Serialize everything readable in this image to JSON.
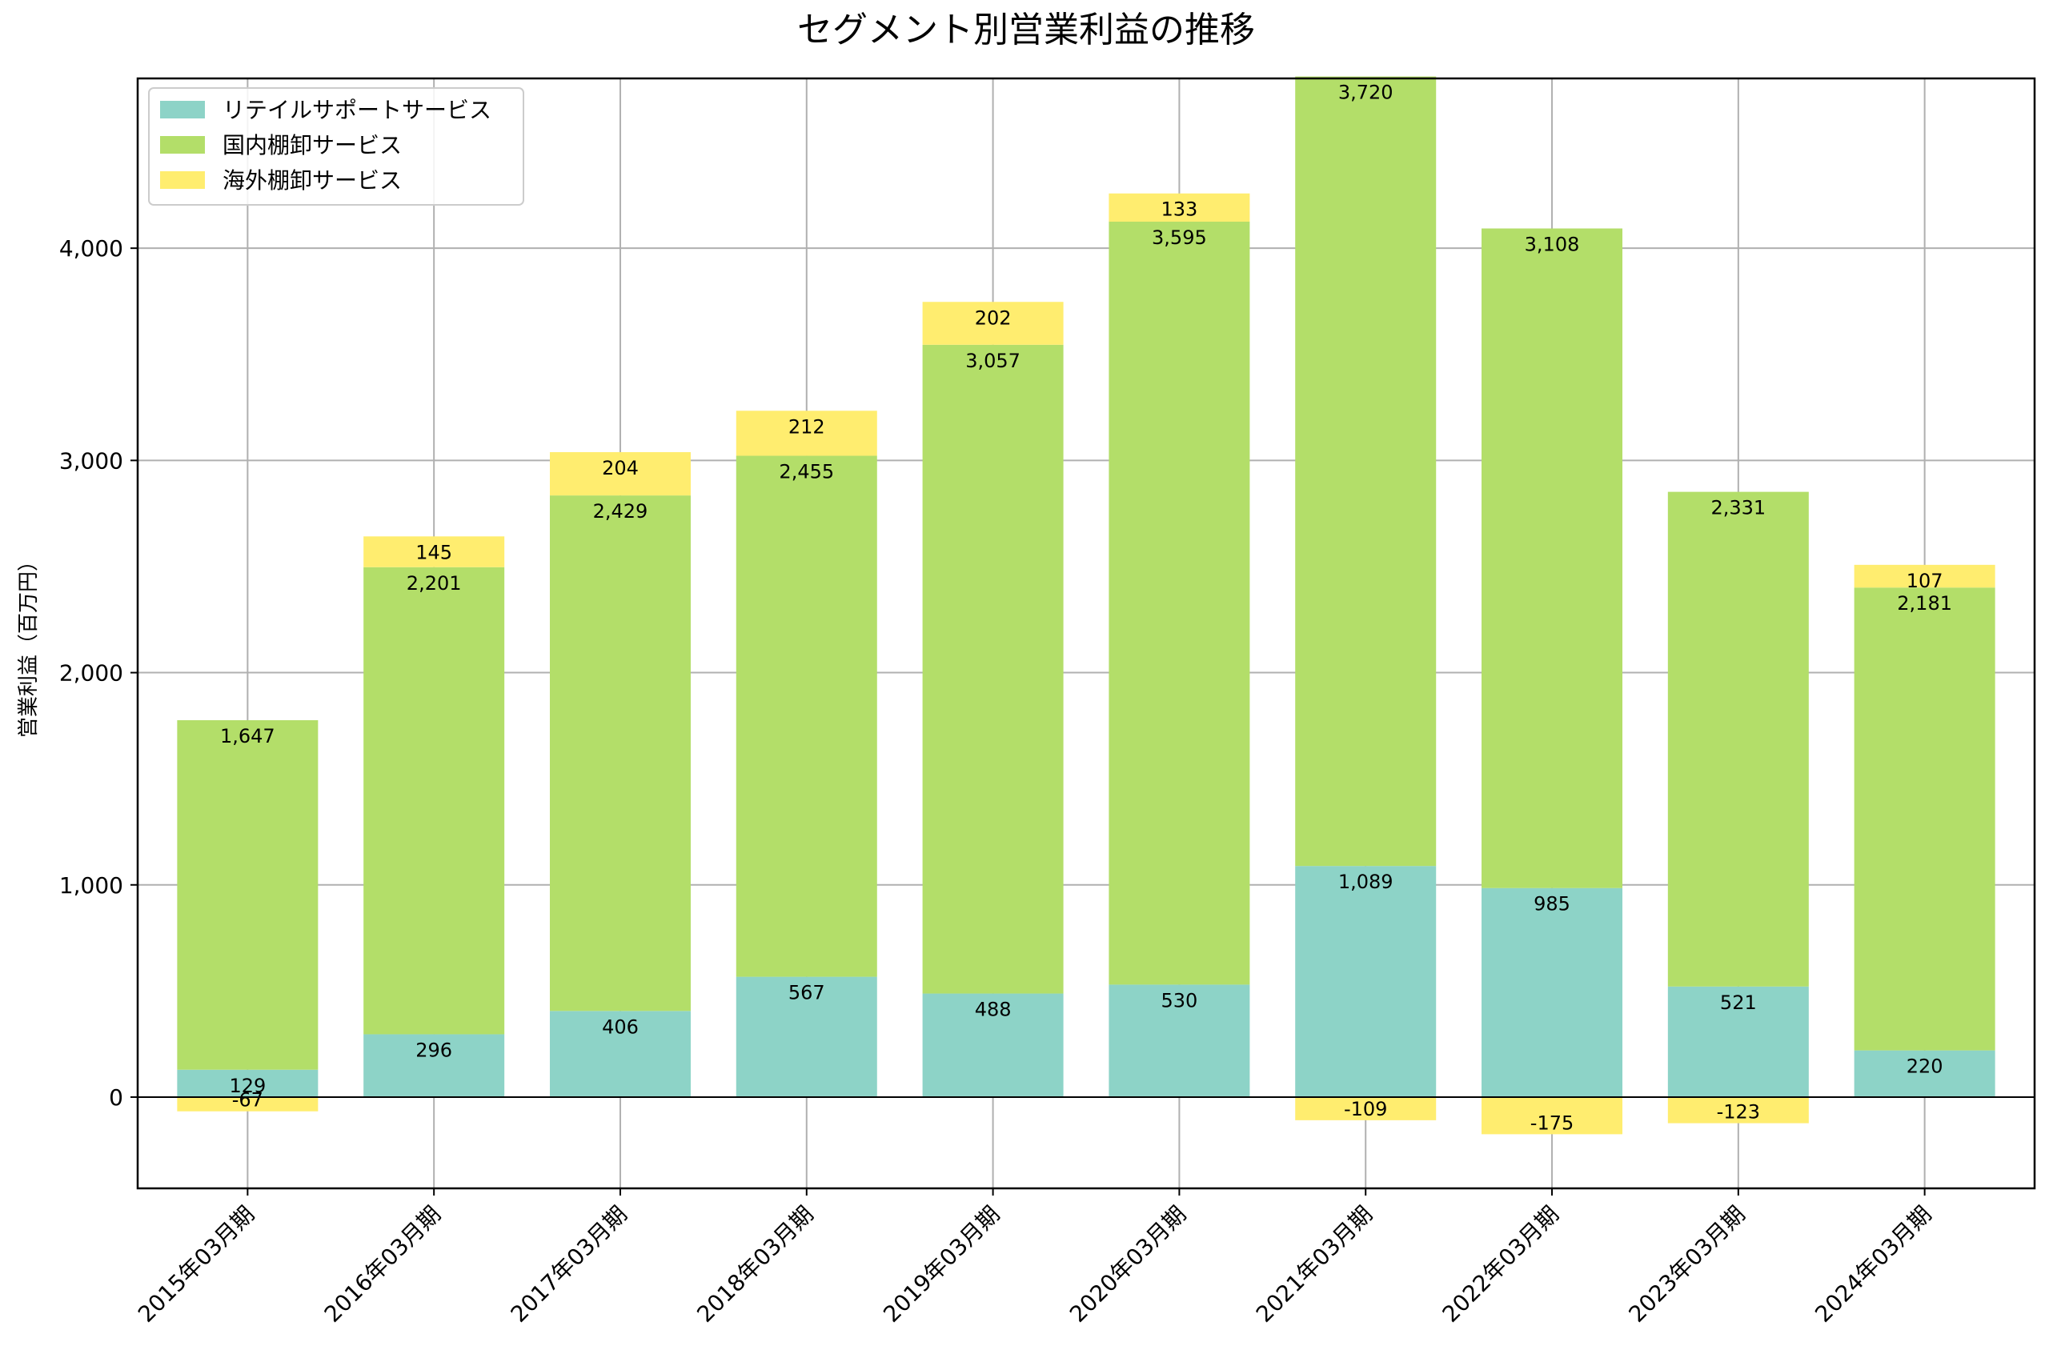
{
  "chart_data": {
    "type": "bar",
    "stacked": true,
    "title": "セグメント別営業利益の推移",
    "xlabel": "",
    "ylabel": "営業利益（百万円）",
    "ylim": [
      -430,
      4800
    ],
    "yticks": [
      0,
      1000,
      2000,
      3000,
      4000
    ],
    "ytick_labels": [
      "0",
      "1,000",
      "2,000",
      "3,000",
      "4,000"
    ],
    "grid": true,
    "legend_position": "top-left",
    "categories": [
      "2015年03月期",
      "2016年03月期",
      "2017年03月期",
      "2018年03月期",
      "2019年03月期",
      "2020年03月期",
      "2021年03月期",
      "2022年03月期",
      "2023年03月期",
      "2024年03月期"
    ],
    "series": [
      {
        "name": "リテイルサポートサービス",
        "color": "#8dd3c7",
        "values": [
          129,
          296,
          406,
          567,
          488,
          530,
          1089,
          985,
          521,
          220
        ],
        "labels": [
          "129",
          "296",
          "406",
          "567",
          "488",
          "530",
          "1,089",
          "985",
          "521",
          "220"
        ]
      },
      {
        "name": "国内棚卸サービス",
        "color": "#b3de69",
        "values": [
          1647,
          2201,
          2429,
          2455,
          3057,
          3595,
          3720,
          3108,
          2331,
          2181
        ],
        "labels": [
          "1,647",
          "2,201",
          "2,429",
          "2,455",
          "3,057",
          "3,595",
          "3,720",
          "3,108",
          "2,331",
          "2,181"
        ]
      },
      {
        "name": "海外棚卸サービス",
        "color": "#ffed6f",
        "values": [
          -67,
          145,
          204,
          212,
          202,
          133,
          -109,
          -175,
          -123,
          107
        ],
        "labels": [
          "-67",
          "145",
          "204",
          "212",
          "202",
          "133",
          "-109",
          "-175",
          "-123",
          "107"
        ]
      }
    ]
  }
}
